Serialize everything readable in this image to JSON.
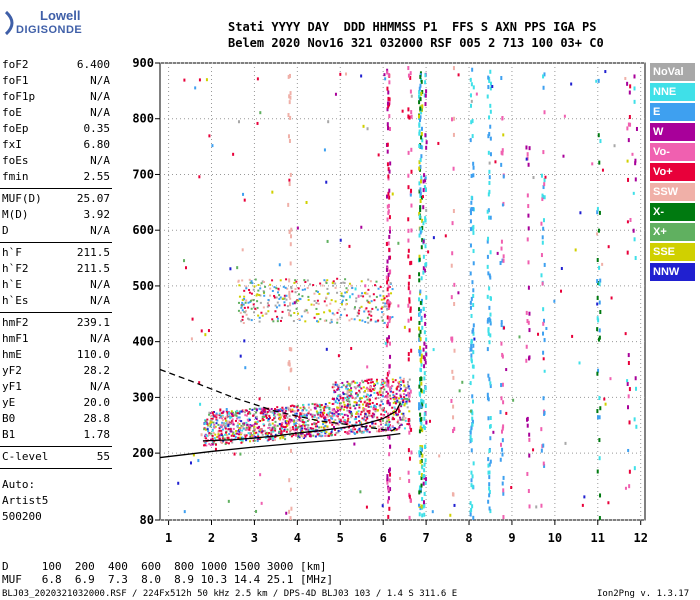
{
  "logo": {
    "line1": "Lowell",
    "line2": "DIGISONDE"
  },
  "header": {
    "line1": "Stati YYYY DAY  DDD HHMMSS P1  FFS S AXN PPS IGA PS",
    "line2": "Belem 2020 Nov16 321 032000 RSF 005 2 713 100 03+ C0"
  },
  "params_groups": [
    [
      [
        "foF2",
        "6.400"
      ],
      [
        "foF1",
        "N/A"
      ],
      [
        "foF1p",
        "N/A"
      ],
      [
        "foE",
        "N/A"
      ],
      [
        "foEp",
        "0.35"
      ],
      [
        "fxI",
        "6.80"
      ],
      [
        "foEs",
        "N/A"
      ],
      [
        "fmin",
        "2.55"
      ]
    ],
    [
      [
        "MUF(D)",
        "25.07"
      ],
      [
        "M(D)",
        "3.92"
      ],
      [
        "D",
        "N/A"
      ]
    ],
    [
      [
        "h`F",
        "211.5"
      ],
      [
        "h`F2",
        "211.5"
      ],
      [
        "h`E",
        "N/A"
      ],
      [
        "h`Es",
        "N/A"
      ]
    ],
    [
      [
        "hmF2",
        "239.1"
      ],
      [
        "hmF1",
        "N/A"
      ],
      [
        "hmE",
        "110.0"
      ],
      [
        "yF2",
        "28.2"
      ],
      [
        "yF1",
        "N/A"
      ],
      [
        "yE",
        "20.0"
      ],
      [
        "B0",
        "28.8"
      ],
      [
        "B1",
        "1.78"
      ]
    ],
    [
      [
        "C-level",
        "55"
      ]
    ]
  ],
  "auto": {
    "label": "Auto:",
    "name": "Artist5",
    "code": "500200"
  },
  "legend": [
    {
      "label": "NoVal",
      "color": "#a8a8a8"
    },
    {
      "label": "NNE",
      "color": "#3fe0e8"
    },
    {
      "label": "E",
      "color": "#3ea0f0"
    },
    {
      "label": "W",
      "color": "#a8009a"
    },
    {
      "label": "Vo-",
      "color": "#f060b0"
    },
    {
      "label": "Vo+",
      "color": "#e8003a"
    },
    {
      "label": "SSW",
      "color": "#f0b0a8"
    },
    {
      "label": "X-",
      "color": "#007a10"
    },
    {
      "label": "X+",
      "color": "#60b060"
    },
    {
      "label": "SSE",
      "color": "#d0d000"
    },
    {
      "label": "NNW",
      "color": "#2020d0"
    }
  ],
  "bottom": {
    "d_row": "D     100  200  400  600  800 1000 1500 3000 [km]",
    "muf_row": "MUF   6.8  6.9  7.3  8.0  8.9 10.3 14.4 25.1 [MHz]",
    "footer_left": "BLJ03_2020321032000.RSF / 224Fx512h 50 kHz 2.5 km / DPS-4D BLJ03 103 / 1.4 S 311.6 E",
    "footer_right": "Ion2Png v. 1.3.17"
  },
  "chart_data": {
    "type": "scatter",
    "title": "",
    "xlabel": "",
    "ylabel": "",
    "xlim": [
      0.8,
      12.1
    ],
    "ylim": [
      80,
      900
    ],
    "x_ticks": [
      1,
      2,
      3,
      4,
      5,
      6,
      7,
      8,
      9,
      10,
      11,
      12
    ],
    "y_ticks": [
      80,
      200,
      300,
      400,
      500,
      600,
      700,
      800,
      900
    ],
    "grid": "dotted",
    "traces": [
      {
        "name": "virtual height trace (x)",
        "color": "#000000",
        "points": [
          [
            0.8,
            192
          ],
          [
            2,
            203
          ],
          [
            3,
            211
          ],
          [
            4,
            218
          ],
          [
            5,
            224
          ],
          [
            6,
            231
          ],
          [
            6.4,
            235
          ]
        ]
      },
      {
        "name": "virtual height trace (o)",
        "color": "#000000",
        "points": [
          [
            1.8,
            222
          ],
          [
            2.5,
            224
          ],
          [
            3,
            227
          ],
          [
            3.5,
            231
          ],
          [
            4,
            236
          ],
          [
            4.5,
            240
          ],
          [
            5,
            245
          ],
          [
            5.5,
            251
          ],
          [
            6,
            262
          ],
          [
            6.3,
            275
          ],
          [
            6.4,
            290
          ]
        ]
      }
    ],
    "dashed_profile": {
      "color": "#000000",
      "points": [
        [
          0.8,
          350
        ],
        [
          1.5,
          330
        ],
        [
          2.5,
          300
        ],
        [
          3.5,
          275
        ],
        [
          4.5,
          258
        ],
        [
          5.5,
          248
        ],
        [
          6.2,
          240
        ],
        [
          6.4,
          250
        ]
      ]
    }
  }
}
